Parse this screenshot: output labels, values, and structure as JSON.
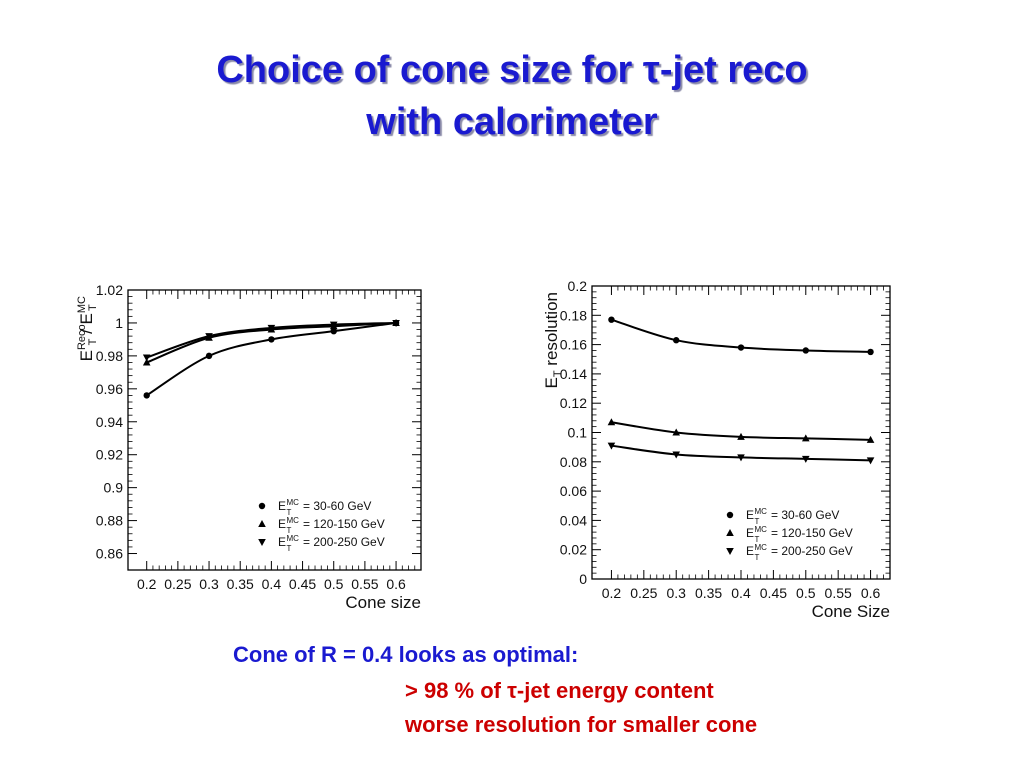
{
  "slide": {
    "title_line1": "Choice of cone size for τ-jet reco",
    "title_line2": "with calorimeter",
    "note_main": "Cone of R = 0.4 looks as optimal:",
    "bullets": [
      "> 98 % of τ-jet energy content",
      "worse resolution for smaller cone"
    ],
    "colors": {
      "title": "#1a1ad0",
      "note_main": "#1a1ad0",
      "bullets": "#cc0000"
    }
  },
  "chart_data": [
    {
      "type": "line",
      "xlabel": "Cone size",
      "ylabel_main": "E",
      "ylabel_sup1": "Reco",
      "ylabel_sub1": "T",
      "ylabel_slash": " / E",
      "ylabel_sup2": "MC",
      "ylabel_sub2": "T",
      "xlim": [
        0.17,
        0.64
      ],
      "ylim": [
        0.85,
        1.02
      ],
      "xticks": [
        0.2,
        0.25,
        0.3,
        0.35,
        0.4,
        0.45,
        0.5,
        0.55,
        0.6
      ],
      "xtick_labels": [
        "0.2",
        "0.25",
        "0.3",
        "0.35",
        "0.4",
        "0.45",
        "0.5",
        "0.55",
        "0.6"
      ],
      "yticks": [
        0.86,
        0.88,
        0.9,
        0.92,
        0.94,
        0.96,
        0.98,
        1.0,
        1.02
      ],
      "ytick_labels": [
        "0.86",
        "0.88",
        "0.9",
        "0.92",
        "0.94",
        "0.96",
        "0.98",
        "1",
        "1.02"
      ],
      "legend_position": "bottom-right",
      "x": [
        0.2,
        0.3,
        0.4,
        0.5,
        0.6
      ],
      "series": [
        {
          "name": "= 30-60 GeV",
          "marker": "circle",
          "values": [
            0.956,
            0.98,
            0.99,
            0.995,
            1.0
          ]
        },
        {
          "name": "= 120-150 GeV",
          "marker": "triangle-up",
          "values": [
            0.976,
            0.991,
            0.996,
            0.998,
            1.0
          ]
        },
        {
          "name": "= 200-250 GeV",
          "marker": "triangle-down",
          "values": [
            0.979,
            0.992,
            0.997,
            0.999,
            1.0
          ]
        }
      ],
      "legend_symbol_main": "E",
      "legend_symbol_sup": "MC",
      "legend_symbol_sub": "T"
    },
    {
      "type": "line",
      "xlabel": "Cone Size",
      "ylabel_main": "E",
      "ylabel_sub1": "T",
      "ylabel_rest": " resolution",
      "xlim": [
        0.17,
        0.63
      ],
      "ylim": [
        0,
        0.2
      ],
      "xticks": [
        0.2,
        0.25,
        0.3,
        0.35,
        0.4,
        0.45,
        0.5,
        0.55,
        0.6
      ],
      "xtick_labels": [
        "0.2",
        "0.25",
        "0.3",
        "0.35",
        "0.4",
        "0.45",
        "0.5",
        "0.55",
        "0.6"
      ],
      "yticks": [
        0,
        0.02,
        0.04,
        0.06,
        0.08,
        0.1,
        0.12,
        0.14,
        0.16,
        0.18,
        0.2
      ],
      "ytick_labels": [
        "0",
        "0.02",
        "0.04",
        "0.06",
        "0.08",
        "0.1",
        "0.12",
        "0.14",
        "0.16",
        "0.18",
        "0.2"
      ],
      "legend_position": "bottom-right",
      "x": [
        0.2,
        0.3,
        0.4,
        0.5,
        0.6
      ],
      "series": [
        {
          "name": "= 30-60 GeV",
          "marker": "circle",
          "values": [
            0.177,
            0.163,
            0.158,
            0.156,
            0.155
          ]
        },
        {
          "name": "= 120-150 GeV",
          "marker": "triangle-up",
          "values": [
            0.107,
            0.1,
            0.097,
            0.096,
            0.095
          ]
        },
        {
          "name": "= 200-250 GeV",
          "marker": "triangle-down",
          "values": [
            0.091,
            0.085,
            0.083,
            0.082,
            0.081
          ]
        }
      ],
      "legend_symbol_main": "E",
      "legend_symbol_sup": "MC",
      "legend_symbol_sub": "T"
    }
  ]
}
